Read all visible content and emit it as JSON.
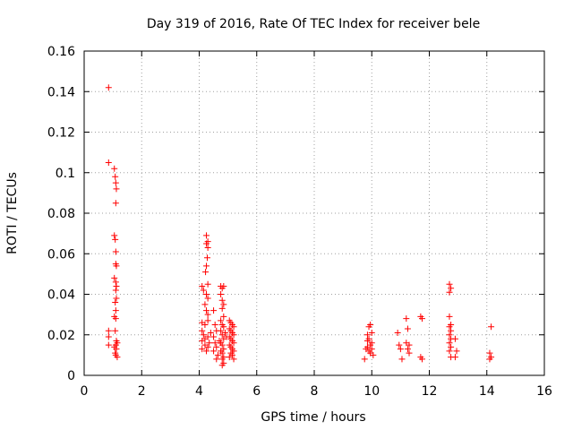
{
  "chart_data": {
    "type": "scatter",
    "title": "Day 319 of 2016, Rate Of TEC Index for receiver bele",
    "xlabel": "GPS time / hours",
    "ylabel": "ROTI / TECUs",
    "xlim": [
      0,
      16
    ],
    "ylim": [
      0,
      0.16
    ],
    "xticks": [
      0,
      2,
      4,
      6,
      8,
      10,
      12,
      14,
      16
    ],
    "xtick_labels": [
      "0",
      "2",
      "4",
      "6",
      "8",
      "10",
      "12",
      "14",
      "16"
    ],
    "yticks": [
      0,
      0.02,
      0.04,
      0.06,
      0.08,
      0.1,
      0.12,
      0.14,
      0.16
    ],
    "ytick_labels": [
      "0",
      "0.02",
      "0.04",
      "0.06",
      "0.08",
      "0.1",
      "0.12",
      "0.14",
      "0.16"
    ],
    "grid": true,
    "marker": "+",
    "color": "#ff0000",
    "series": [
      {
        "name": "ROTI",
        "points": [
          [
            0.85,
            0.142
          ],
          [
            0.85,
            0.105
          ],
          [
            0.85,
            0.022
          ],
          [
            0.85,
            0.019
          ],
          [
            0.85,
            0.015
          ],
          [
            1.05,
            0.102
          ],
          [
            1.08,
            0.098
          ],
          [
            1.1,
            0.095
          ],
          [
            1.12,
            0.092
          ],
          [
            1.1,
            0.085
          ],
          [
            1.05,
            0.069
          ],
          [
            1.08,
            0.067
          ],
          [
            1.1,
            0.061
          ],
          [
            1.1,
            0.055
          ],
          [
            1.12,
            0.054
          ],
          [
            1.05,
            0.048
          ],
          [
            1.1,
            0.046
          ],
          [
            1.12,
            0.044
          ],
          [
            1.1,
            0.042
          ],
          [
            1.12,
            0.038
          ],
          [
            1.08,
            0.036
          ],
          [
            1.1,
            0.032
          ],
          [
            1.05,
            0.029
          ],
          [
            1.1,
            0.028
          ],
          [
            1.08,
            0.022
          ],
          [
            1.12,
            0.017
          ],
          [
            1.15,
            0.016
          ],
          [
            1.1,
            0.015
          ],
          [
            1.05,
            0.014
          ],
          [
            1.12,
            0.013
          ],
          [
            1.08,
            0.011
          ],
          [
            1.1,
            0.01
          ],
          [
            1.15,
            0.009
          ],
          [
            4.25,
            0.069
          ],
          [
            4.3,
            0.066
          ],
          [
            4.25,
            0.065
          ],
          [
            4.3,
            0.063
          ],
          [
            4.28,
            0.058
          ],
          [
            4.25,
            0.054
          ],
          [
            4.22,
            0.051
          ],
          [
            4.1,
            0.044
          ],
          [
            4.15,
            0.042
          ],
          [
            4.3,
            0.045
          ],
          [
            4.25,
            0.04
          ],
          [
            4.3,
            0.038
          ],
          [
            4.2,
            0.035
          ],
          [
            4.25,
            0.032
          ],
          [
            4.3,
            0.03
          ],
          [
            4.1,
            0.026
          ],
          [
            4.2,
            0.025
          ],
          [
            4.3,
            0.027
          ],
          [
            4.1,
            0.022
          ],
          [
            4.15,
            0.02
          ],
          [
            4.2,
            0.018
          ],
          [
            4.3,
            0.019
          ],
          [
            4.1,
            0.017
          ],
          [
            4.2,
            0.015
          ],
          [
            4.3,
            0.014
          ],
          [
            4.1,
            0.013
          ],
          [
            4.25,
            0.012
          ],
          [
            4.35,
            0.016
          ],
          [
            4.4,
            0.021
          ],
          [
            4.5,
            0.032
          ],
          [
            4.55,
            0.025
          ],
          [
            4.6,
            0.022
          ],
          [
            4.5,
            0.019
          ],
          [
            4.55,
            0.016
          ],
          [
            4.6,
            0.014
          ],
          [
            4.5,
            0.012
          ],
          [
            4.65,
            0.01
          ],
          [
            4.6,
            0.008
          ],
          [
            4.7,
            0.017
          ],
          [
            4.75,
            0.044
          ],
          [
            4.8,
            0.043
          ],
          [
            4.85,
            0.044
          ],
          [
            4.75,
            0.04
          ],
          [
            4.8,
            0.037
          ],
          [
            4.85,
            0.035
          ],
          [
            4.8,
            0.033
          ],
          [
            4.85,
            0.029
          ],
          [
            4.75,
            0.027
          ],
          [
            4.8,
            0.025
          ],
          [
            4.85,
            0.024
          ],
          [
            4.75,
            0.022
          ],
          [
            4.8,
            0.02
          ],
          [
            4.85,
            0.018
          ],
          [
            4.75,
            0.016
          ],
          [
            4.8,
            0.015
          ],
          [
            4.85,
            0.013
          ],
          [
            4.75,
            0.012
          ],
          [
            4.8,
            0.011
          ],
          [
            4.85,
            0.009
          ],
          [
            4.8,
            0.008
          ],
          [
            4.85,
            0.006
          ],
          [
            4.8,
            0.005
          ],
          [
            4.9,
            0.021
          ],
          [
            4.95,
            0.019
          ],
          [
            5.05,
            0.027
          ],
          [
            5.1,
            0.026
          ],
          [
            5.15,
            0.025
          ],
          [
            5.2,
            0.024
          ],
          [
            5.05,
            0.023
          ],
          [
            5.1,
            0.022
          ],
          [
            5.15,
            0.021
          ],
          [
            5.2,
            0.02
          ],
          [
            5.05,
            0.019
          ],
          [
            5.1,
            0.018
          ],
          [
            5.15,
            0.017
          ],
          [
            5.2,
            0.016
          ],
          [
            5.05,
            0.015
          ],
          [
            5.1,
            0.014
          ],
          [
            5.15,
            0.013
          ],
          [
            5.2,
            0.012
          ],
          [
            5.1,
            0.011
          ],
          [
            5.15,
            0.01
          ],
          [
            5.05,
            0.009
          ],
          [
            5.2,
            0.008
          ],
          [
            9.75,
            0.008
          ],
          [
            9.8,
            0.013
          ],
          [
            9.85,
            0.017
          ],
          [
            9.9,
            0.024
          ],
          [
            9.95,
            0.025
          ],
          [
            9.85,
            0.02
          ],
          [
            9.9,
            0.018
          ],
          [
            9.95,
            0.015
          ],
          [
            10.0,
            0.013
          ],
          [
            9.9,
            0.012
          ],
          [
            9.95,
            0.011
          ],
          [
            10.0,
            0.016
          ],
          [
            10.05,
            0.01
          ],
          [
            9.85,
            0.014
          ],
          [
            10.0,
            0.021
          ],
          [
            10.9,
            0.021
          ],
          [
            10.95,
            0.015
          ],
          [
            11.0,
            0.013
          ],
          [
            11.05,
            0.008
          ],
          [
            11.2,
            0.028
          ],
          [
            11.25,
            0.023
          ],
          [
            11.2,
            0.016
          ],
          [
            11.3,
            0.015
          ],
          [
            11.25,
            0.013
          ],
          [
            11.3,
            0.011
          ],
          [
            11.7,
            0.029
          ],
          [
            11.75,
            0.028
          ],
          [
            11.7,
            0.009
          ],
          [
            11.75,
            0.008
          ],
          [
            12.7,
            0.045
          ],
          [
            12.75,
            0.043
          ],
          [
            12.7,
            0.041
          ],
          [
            12.7,
            0.029
          ],
          [
            12.75,
            0.025
          ],
          [
            12.7,
            0.024
          ],
          [
            12.75,
            0.022
          ],
          [
            12.7,
            0.02
          ],
          [
            12.75,
            0.018
          ],
          [
            12.7,
            0.016
          ],
          [
            12.75,
            0.014
          ],
          [
            12.7,
            0.012
          ],
          [
            12.75,
            0.009
          ],
          [
            12.9,
            0.018
          ],
          [
            12.95,
            0.012
          ],
          [
            12.9,
            0.009
          ],
          [
            14.15,
            0.024
          ],
          [
            14.1,
            0.011
          ],
          [
            14.15,
            0.009
          ],
          [
            14.1,
            0.008
          ]
        ]
      }
    ]
  }
}
